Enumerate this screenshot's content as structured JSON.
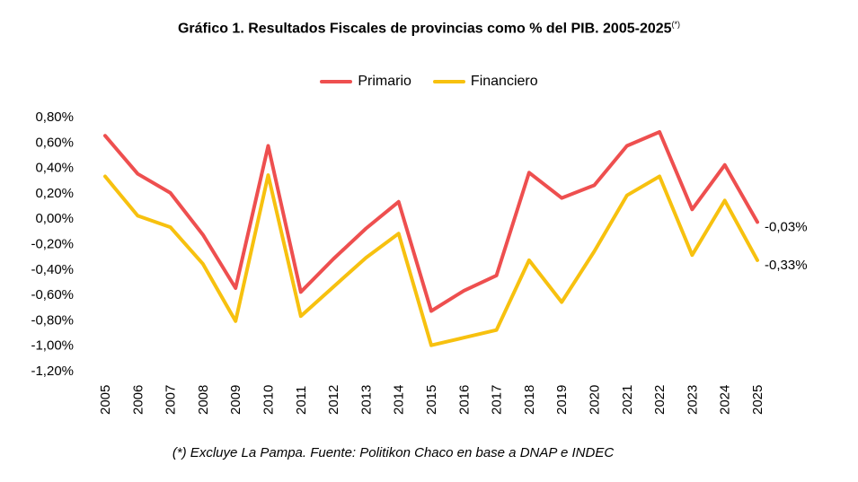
{
  "title": "Gráfico 1. Resultados Fiscales de provincias como % del PIB. 2005-2025",
  "title_note": "(*)",
  "footnote": "(*) Excluye La Pampa. Fuente: Politikon Chaco en base a DNAP e INDEC",
  "chart_data": {
    "type": "line",
    "title": "Gráfico 1. Resultados Fiscales de provincias como % del PIB. 2005-2025",
    "xlabel": "",
    "ylabel": "",
    "categories": [
      "2005",
      "2006",
      "2007",
      "2008",
      "2009",
      "2010",
      "2011",
      "2012",
      "2013",
      "2014",
      "2015",
      "2016",
      "2017",
      "2018",
      "2019",
      "2020",
      "2021",
      "2022",
      "2023",
      "2024",
      "2025"
    ],
    "ylim": [
      -1.2,
      0.8
    ],
    "yticks": [
      "0,80%",
      "0,60%",
      "0,40%",
      "0,20%",
      "0,00%",
      "-0,20%",
      "-0,40%",
      "-0,60%",
      "-0,80%",
      "-1,00%",
      "-1,20%"
    ],
    "ytick_values": [
      0.8,
      0.6,
      0.4,
      0.2,
      0.0,
      -0.2,
      -0.4,
      -0.6,
      -0.8,
      -1.0,
      -1.2
    ],
    "grid": false,
    "legend_position": "top-center",
    "series": [
      {
        "name": "Primario",
        "color": "#ee4f4f",
        "values": [
          0.65,
          0.35,
          0.2,
          -0.13,
          -0.55,
          0.57,
          -0.58,
          -0.32,
          -0.08,
          0.13,
          -0.73,
          -0.57,
          -0.45,
          0.36,
          0.16,
          0.26,
          0.57,
          0.68,
          0.07,
          0.42,
          -0.03
        ],
        "end_label": "-0,03%"
      },
      {
        "name": "Financiero",
        "color": "#f7c10f",
        "values": [
          0.33,
          0.02,
          -0.07,
          -0.36,
          -0.81,
          0.34,
          -0.77,
          -0.54,
          -0.31,
          -0.12,
          -1.0,
          -0.94,
          -0.88,
          -0.33,
          -0.66,
          -0.26,
          0.18,
          0.33,
          -0.29,
          0.14,
          -0.33
        ],
        "end_label": "-0,33%"
      }
    ]
  }
}
